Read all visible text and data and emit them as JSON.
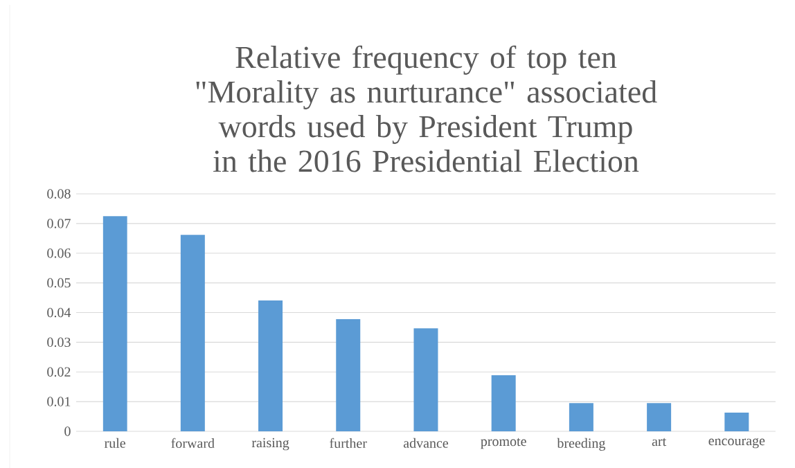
{
  "chart_data": {
    "type": "bar",
    "title": "Relative frequency of  top ten \"Morality as nurturance\" associated words used by President Trump in the 2016 Presidential Election",
    "categories": [
      "rule",
      "forward",
      "raising",
      "further",
      "advance",
      "promote",
      "breeding",
      "art",
      "encourage"
    ],
    "values": [
      0.0725,
      0.0662,
      0.0441,
      0.0378,
      0.0347,
      0.0189,
      0.0095,
      0.0095,
      0.0063
    ],
    "color": "#5b9bd5",
    "ylim": [
      0,
      0.08
    ],
    "yticks": [
      0,
      0.01,
      0.02,
      0.03,
      0.04,
      0.05,
      0.06,
      0.07,
      0.08
    ],
    "grid": "y"
  }
}
